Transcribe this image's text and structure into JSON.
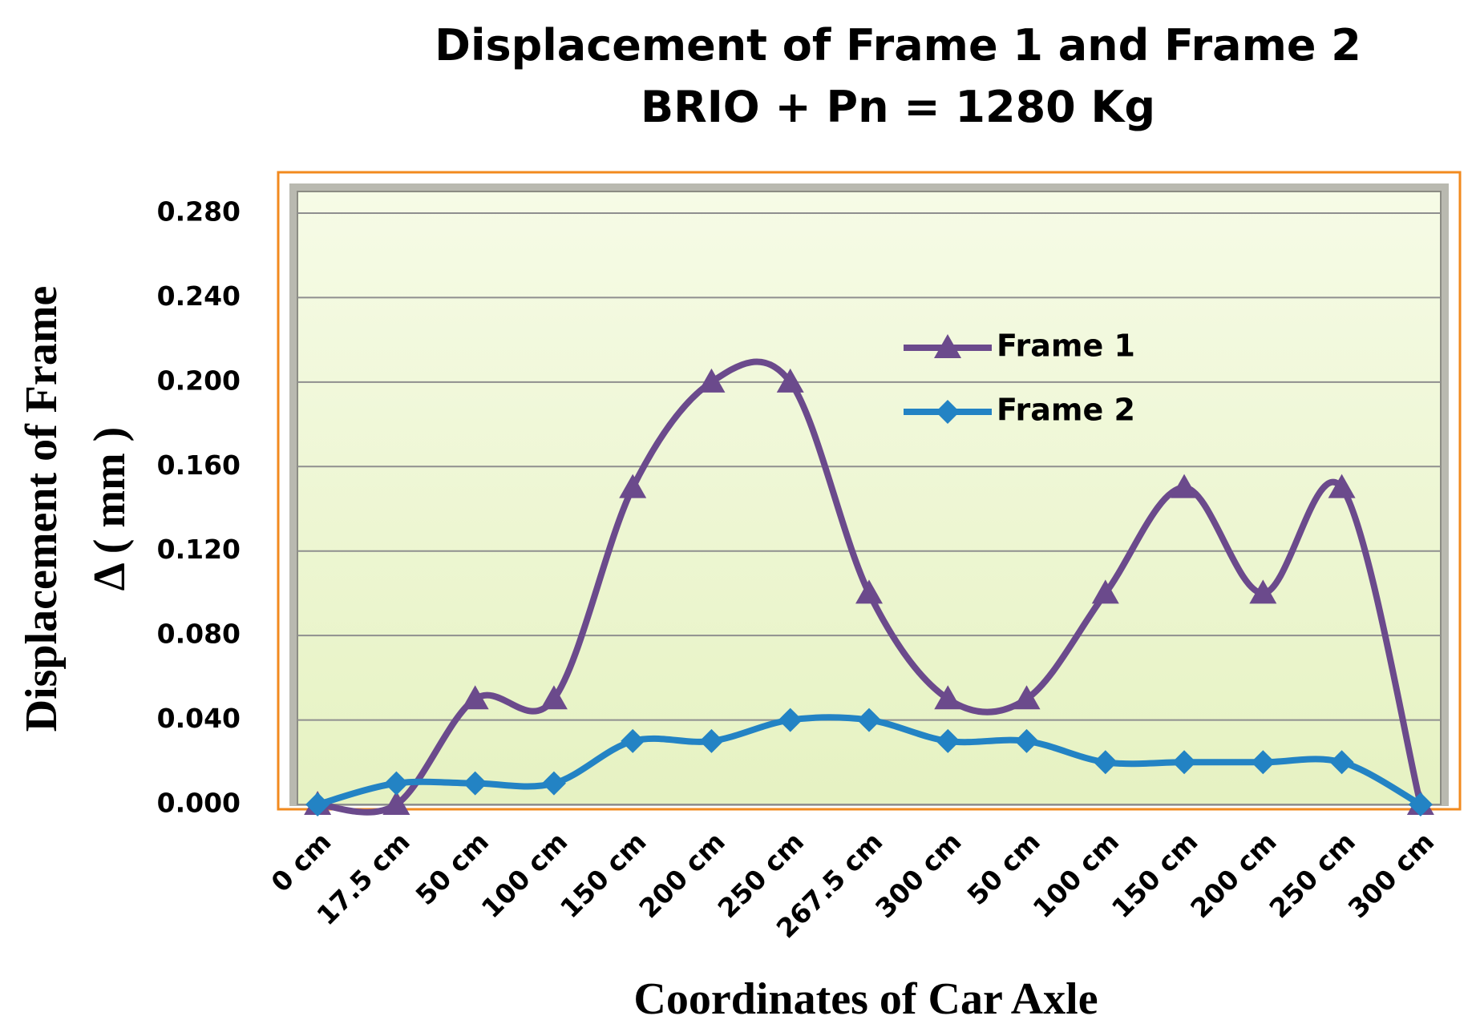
{
  "chart_data": {
    "type": "line",
    "title": [
      "Displacement of Frame 1 and Frame 2",
      "BRIO + Pn = 1280 Kg"
    ],
    "x_label": "Coordinates of Car Axle",
    "y_label": [
      "Displacement of Frame",
      "Δ ( mm )"
    ],
    "categories": [
      "0 cm",
      "17.5 cm",
      "50 cm",
      "100 cm",
      "150 cm",
      "200 cm",
      "250 cm",
      "267.5 cm",
      "300 cm",
      "50 cm",
      "100 cm",
      "150 cm",
      "200 cm",
      "250 cm",
      "300 cm"
    ],
    "series": [
      {
        "name": "Frame 1",
        "color": "#6b4a8c",
        "marker": "triangle",
        "values": [
          0,
          0,
          0.05,
          0.05,
          0.15,
          0.2,
          0.2,
          0.1,
          0.05,
          0.05,
          0.1,
          0.15,
          0.1,
          0.15,
          0
        ]
      },
      {
        "name": "Frame 2",
        "color": "#2383c4",
        "marker": "diamond",
        "values": [
          0,
          0.01,
          0.01,
          0.01,
          0.03,
          0.03,
          0.04,
          0.04,
          0.03,
          0.03,
          0.02,
          0.02,
          0.02,
          0.02,
          0
        ]
      }
    ],
    "ylim": [
      0,
      0.28
    ],
    "yticks": [
      {
        "value": 0,
        "label": "0.000"
      },
      {
        "value": 0.04,
        "label": "0.040"
      },
      {
        "value": 0.08,
        "label": "0.080"
      },
      {
        "value": 0.12,
        "label": "0.120"
      },
      {
        "value": 0.16,
        "label": "0.160"
      },
      {
        "value": 0.2,
        "label": "0.200"
      },
      {
        "value": 0.24,
        "label": "0.240"
      },
      {
        "value": 0.28,
        "label": "0.280"
      }
    ],
    "grid": true,
    "smooth": true
  }
}
